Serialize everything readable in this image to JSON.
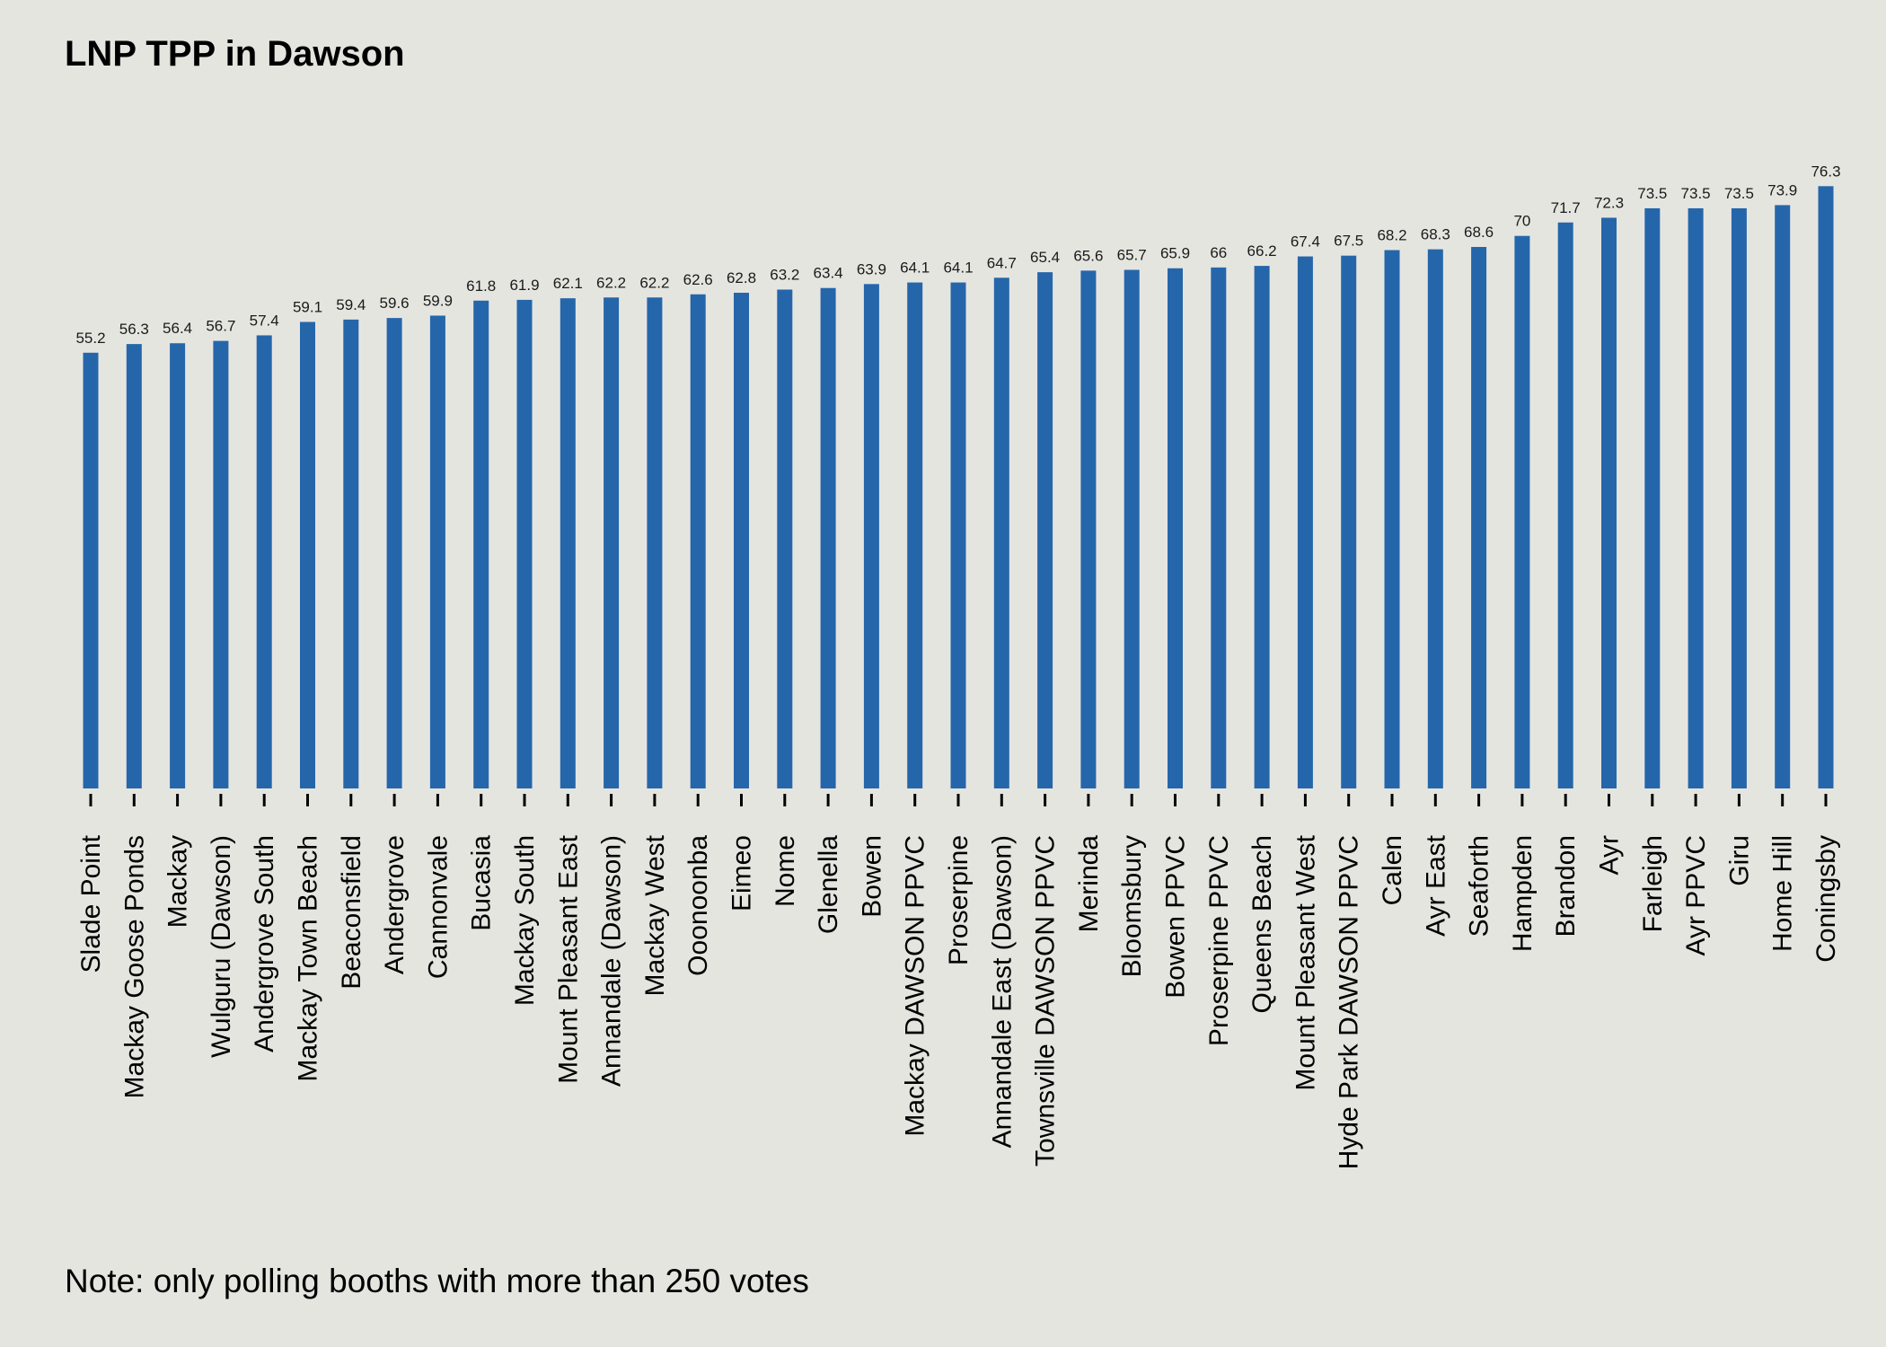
{
  "title": "LNP TPP in Dawson",
  "note": "Note: only polling booths with more than 250 votes",
  "colors": {
    "background": "#e5e5e0",
    "bar": "#2566ab",
    "axis": "#000000"
  },
  "chart_data": {
    "type": "bar",
    "title": "LNP TPP in Dawson",
    "xlabel": "",
    "ylabel": "",
    "ylim": [
      0,
      80
    ],
    "grid": false,
    "legend": "none",
    "categories": [
      "Slade Point",
      "Mackay Goose Ponds",
      "Mackay",
      "Wulguru (Dawson)",
      "Andergrove South",
      "Mackay Town Beach",
      "Beaconsfield",
      "Andergrove",
      "Cannonvale",
      "Bucasia",
      "Mackay South",
      "Mount Pleasant East",
      "Annandale (Dawson)",
      "Mackay West",
      "Ooonoonba",
      "Eimeo",
      "Nome",
      "Glenella",
      "Bowen",
      "Mackay DAWSON PPVC",
      "Proserpine",
      "Annandale East (Dawson)",
      "Townsville DAWSON PPVC",
      "Merinda",
      "Bloomsbury",
      "Bowen PPVC",
      "Proserpine PPVC",
      "Queens Beach",
      "Mount Pleasant West",
      "Hyde Park DAWSON PPVC",
      "Calen",
      "Ayr East",
      "Seaforth",
      "Hampden",
      "Brandon",
      "Ayr",
      "Farleigh",
      "Ayr PPVC",
      "Giru",
      "Home Hill",
      "Coningsby"
    ],
    "values": [
      55.2,
      56.3,
      56.4,
      56.7,
      57.4,
      59.1,
      59.4,
      59.6,
      59.9,
      61.8,
      61.9,
      62.1,
      62.2,
      62.2,
      62.6,
      62.8,
      63.2,
      63.4,
      63.9,
      64.1,
      64.1,
      64.7,
      65.4,
      65.6,
      65.7,
      65.9,
      66,
      66.2,
      67.4,
      67.5,
      68.2,
      68.3,
      68.6,
      70,
      71.7,
      72.3,
      73.5,
      73.5,
      73.5,
      73.9,
      76.3
    ]
  }
}
